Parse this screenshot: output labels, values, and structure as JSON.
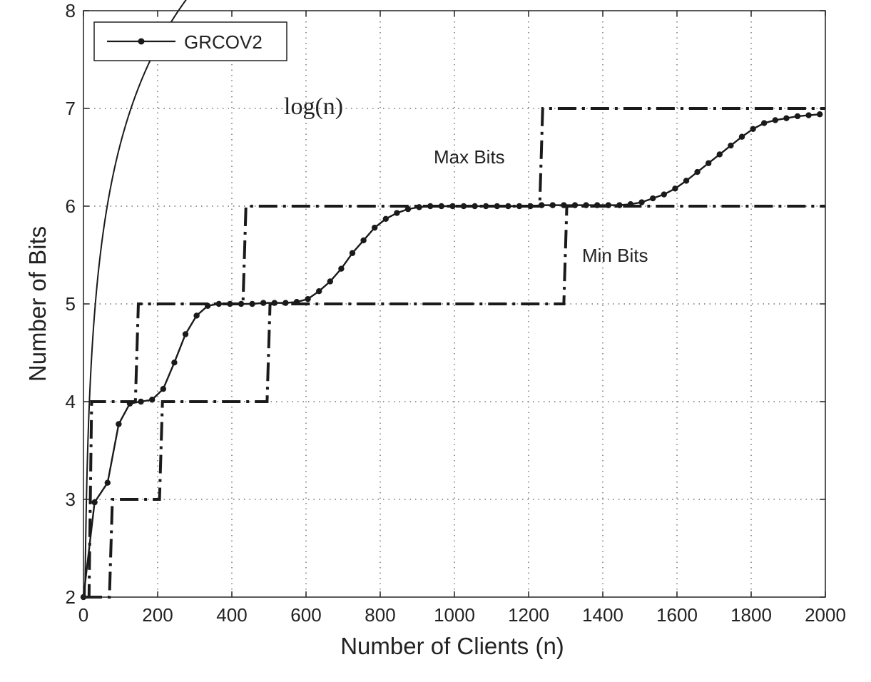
{
  "chart_data": {
    "type": "line",
    "xlabel": "Number of Clients (n)",
    "ylabel": "Number of Bits",
    "xlim": [
      0,
      2000
    ],
    "ylim": [
      2,
      8
    ],
    "xticks": [
      0,
      200,
      400,
      600,
      800,
      1000,
      1200,
      1400,
      1600,
      1800,
      2000
    ],
    "yticks": [
      2,
      3,
      4,
      5,
      6,
      7,
      8
    ],
    "grid": true,
    "legend": {
      "placement": "top-left",
      "entries": [
        "GRCOV2"
      ]
    },
    "annotations": [
      {
        "text": "log(n)",
        "x": 540,
        "y": 7.0
      },
      {
        "text": "Max Bits",
        "x": 1190,
        "y": 6.5
      },
      {
        "text": "Min Bits",
        "x": 1325,
        "y": 5.5
      }
    ],
    "series": [
      {
        "name": "GRCOV2",
        "style": "solid-dots",
        "color": "#1a1a1a",
        "x": [
          0,
          30,
          65,
          95,
          125,
          155,
          185,
          215,
          245,
          275,
          305,
          335,
          365,
          395,
          425,
          455,
          485,
          515,
          545,
          575,
          605,
          635,
          665,
          695,
          725,
          755,
          785,
          815,
          845,
          875,
          905,
          935,
          965,
          995,
          1025,
          1055,
          1085,
          1115,
          1145,
          1175,
          1205,
          1235,
          1265,
          1295,
          1325,
          1355,
          1385,
          1415,
          1445,
          1475,
          1505,
          1535,
          1565,
          1595,
          1625,
          1655,
          1685,
          1715,
          1745,
          1775,
          1805,
          1835,
          1865,
          1895,
          1925,
          1955,
          1985
        ],
        "y": [
          2.0,
          2.97,
          3.17,
          3.77,
          3.98,
          4.0,
          4.02,
          4.13,
          4.4,
          4.69,
          4.88,
          4.98,
          5.0,
          5.0,
          5.0,
          5.0,
          5.01,
          5.01,
          5.01,
          5.02,
          5.05,
          5.13,
          5.23,
          5.36,
          5.52,
          5.65,
          5.78,
          5.87,
          5.93,
          5.97,
          5.99,
          6.0,
          6.0,
          6.0,
          6.0,
          6.0,
          6.0,
          6.0,
          6.0,
          6.0,
          6.0,
          6.01,
          6.01,
          6.01,
          6.01,
          6.01,
          6.01,
          6.01,
          6.01,
          6.02,
          6.04,
          6.08,
          6.12,
          6.18,
          6.26,
          6.35,
          6.44,
          6.53,
          6.62,
          6.71,
          6.79,
          6.85,
          6.88,
          6.9,
          6.92,
          6.93,
          6.94
        ]
      },
      {
        "name": "log(n)",
        "style": "solid-thin",
        "color": "#1a1a1a",
        "function": "log2",
        "x_start": 3,
        "x_end": 2000
      },
      {
        "name": "Max Bits",
        "style": "dash-dot",
        "color": "#1a1a1a",
        "x": [
          0,
          15,
          22,
          140,
          148,
          430,
          438,
          1230,
          1238,
          2000
        ],
        "y": [
          2,
          2,
          4,
          4,
          5,
          5,
          6,
          6,
          7,
          7
        ]
      },
      {
        "name": "Min Bits",
        "style": "dash-dot",
        "color": "#1a1a1a",
        "x": [
          0,
          70,
          78,
          205,
          213,
          495,
          503,
          1295,
          1303,
          2000
        ],
        "y": [
          2,
          2,
          3,
          3,
          4,
          4,
          5,
          5,
          6,
          6
        ]
      }
    ]
  }
}
